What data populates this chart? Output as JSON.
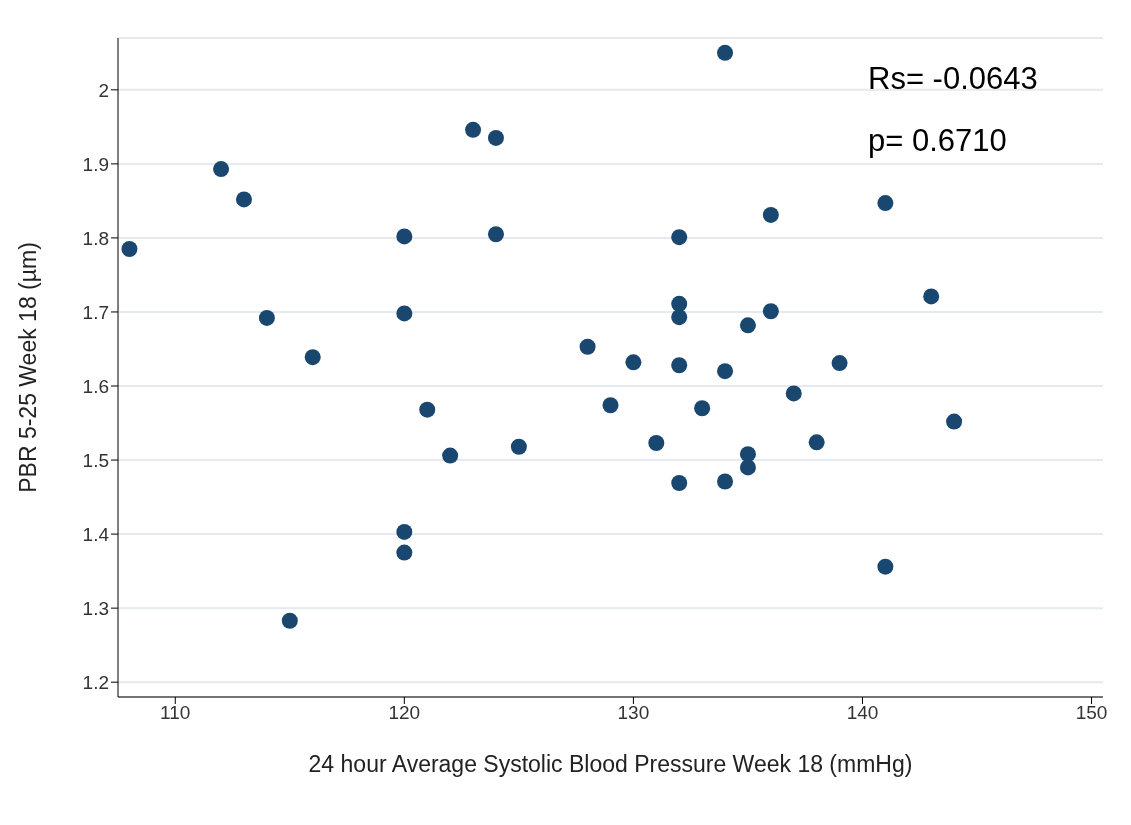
{
  "chart_data": {
    "type": "scatter",
    "xlabel": "24 hour Average Systolic Blood Pressure Week 18 (mmHg)",
    "ylabel": "PBR 5-25 Week 18 (µm)",
    "annotations": [
      "Rs= -0.0643",
      "p= 0.6710"
    ],
    "x": [
      108,
      112,
      113,
      114,
      115,
      116,
      120,
      120,
      120,
      120,
      121,
      122,
      123,
      124,
      124,
      125,
      128,
      129,
      130,
      131,
      132,
      132,
      132,
      132,
      132,
      133,
      134,
      134,
      134,
      135,
      135,
      135,
      136,
      136,
      137,
      138,
      139,
      141,
      141,
      143,
      144
    ],
    "series": [
      {
        "color": "#1a476f",
        "values": [
          1.785,
          1.893,
          1.852,
          1.692,
          1.283,
          1.639,
          1.802,
          1.698,
          1.403,
          1.375,
          1.568,
          1.506,
          1.946,
          1.935,
          1.805,
          1.518,
          1.653,
          1.574,
          1.632,
          1.523,
          1.801,
          1.711,
          1.693,
          1.628,
          1.469,
          1.57,
          2.05,
          1.62,
          1.471,
          1.682,
          1.508,
          1.49,
          1.831,
          1.701,
          1.59,
          1.524,
          1.631,
          1.847,
          1.356,
          1.721,
          1.552
        ]
      }
    ],
    "xlim": [
      107.5,
      150.5
    ],
    "xticks": [
      110,
      120,
      130,
      140,
      150
    ],
    "ylim": [
      1.18,
      2.07
    ],
    "yticks": [
      {
        "value": 1.2,
        "label": "1.2"
      },
      {
        "value": 1.3,
        "label": "1.3"
      },
      {
        "value": 1.4,
        "label": "1.4"
      },
      {
        "value": 1.5,
        "label": "1.5"
      },
      {
        "value": 1.6,
        "label": "1.6"
      },
      {
        "value": 1.7,
        "label": "1.7"
      },
      {
        "value": 1.8,
        "label": "1.8"
      },
      {
        "value": 1.9,
        "label": "1.9"
      },
      {
        "value": 2,
        "label": "2"
      }
    ],
    "grid": "y",
    "marker": "circle"
  }
}
